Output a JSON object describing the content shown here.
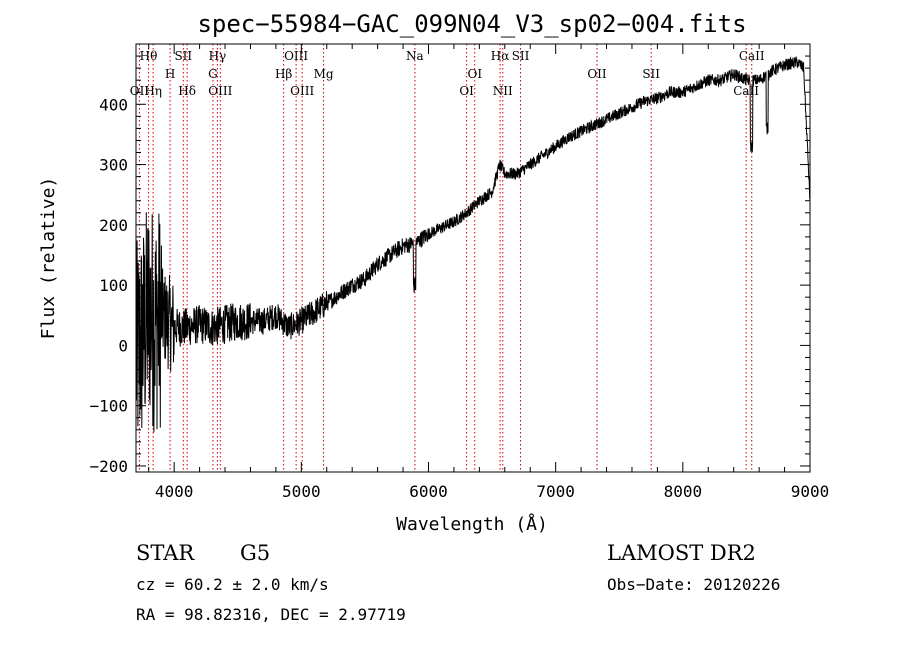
{
  "chart_data": {
    "type": "line",
    "title": "spec−55984−GAC_099N04_V3_sp02−004.fits",
    "xlabel": "Wavelength (Å)",
    "ylabel": "Flux (relative)",
    "xlim": [
      3700,
      9000
    ],
    "ylim": [
      -210,
      500
    ],
    "x_ticks": [
      4000,
      5000,
      6000,
      7000,
      8000,
      9000
    ],
    "y_ticks": [
      -200,
      -100,
      0,
      100,
      200,
      300,
      400
    ],
    "x_tick_labels": [
      "4000",
      "5000",
      "6000",
      "7000",
      "8000",
      "9000"
    ],
    "y_tick_labels": [
      "−200",
      "−100",
      "0",
      "100",
      "200",
      "300",
      "400"
    ],
    "grid": false,
    "series": [
      {
        "line_color": "#000000",
        "x": [
          3700,
          3760,
          3800,
          3850,
          3900,
          3950,
          4000,
          4100,
          4200,
          4300,
          4400,
          4500,
          4600,
          4700,
          4800,
          4900,
          5000,
          5100,
          5200,
          5300,
          5400,
          5500,
          5600,
          5700,
          5800,
          5900,
          6000,
          6100,
          6200,
          6300,
          6400,
          6500,
          6560,
          6600,
          6700,
          6800,
          6900,
          7000,
          7100,
          7200,
          7300,
          7400,
          7500,
          7600,
          7700,
          7800,
          7900,
          8000,
          8100,
          8200,
          8300,
          8400,
          8500,
          8600,
          8700,
          8800,
          8900,
          8950,
          9000
        ],
        "y": [
          -20,
          20,
          60,
          40,
          50,
          40,
          30,
          30,
          35,
          30,
          35,
          40,
          40,
          40,
          50,
          30,
          40,
          55,
          70,
          85,
          100,
          110,
          135,
          150,
          165,
          170,
          185,
          195,
          205,
          220,
          240,
          255,
          300,
          285,
          285,
          300,
          315,
          330,
          345,
          355,
          365,
          375,
          385,
          395,
          405,
          410,
          420,
          420,
          430,
          440,
          440,
          450,
          440,
          440,
          455,
          465,
          470,
          460,
          240
        ]
      }
    ],
    "line_marker_color": "#cc0000",
    "spectral_lines": [
      {
        "label": "Hθ",
        "x": 3798,
        "row": 1
      },
      {
        "label": "Hη",
        "x": 3835,
        "row": 3
      },
      {
        "label": "OII",
        "x": 3727,
        "row": 3
      },
      {
        "label": "H",
        "x": 3968,
        "row": 2
      },
      {
        "label": "SII",
        "x": 4072,
        "row": 1
      },
      {
        "label": "Hδ",
        "x": 4102,
        "row": 3
      },
      {
        "label": "Hγ",
        "x": 4340,
        "row": 1
      },
      {
        "label": "G",
        "x": 4305,
        "row": 2
      },
      {
        "label": "OIII",
        "x": 4363,
        "row": 3
      },
      {
        "label": "OIII",
        "x": 4959,
        "row": 1
      },
      {
        "label": "Hβ",
        "x": 4861,
        "row": 2
      },
      {
        "label": "OIII",
        "x": 5007,
        "row": 3
      },
      {
        "label": "Mg",
        "x": 5175,
        "row": 2
      },
      {
        "label": "Na",
        "x": 5893,
        "row": 1
      },
      {
        "label": "OI",
        "x": 6364,
        "row": 2
      },
      {
        "label": "OI",
        "x": 6300,
        "row": 3
      },
      {
        "label": "Hα",
        "x": 6563,
        "row": 1
      },
      {
        "label": "SII",
        "x": 6724,
        "row": 1
      },
      {
        "label": "NII",
        "x": 6584,
        "row": 3
      },
      {
        "label": "OII",
        "x": 7325,
        "row": 2
      },
      {
        "label": "SII",
        "x": 7751,
        "row": 2
      },
      {
        "label": "CaII",
        "x": 8542,
        "row": 1
      },
      {
        "label": "CaII",
        "x": 8498,
        "row": 3
      }
    ],
    "info": {
      "obj_class": "STAR",
      "subclass": "G5",
      "survey": "LAMOST DR2",
      "cz": "cz = 60.2 ± 2.0 km/s",
      "obs_date": "Obs−Date: 20120226",
      "radec": "RA =  98.82316, DEC =   2.97719"
    }
  }
}
